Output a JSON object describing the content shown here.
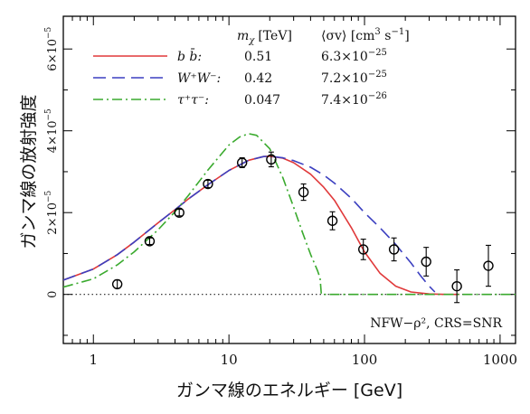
{
  "chart_data": {
    "type": "line",
    "xlabel": "ガンマ線のエネルギー [GeV]",
    "ylabel": "ガンマ線の放射強度",
    "xscale": "log",
    "xlim": [
      0.6,
      1300
    ],
    "ylim": [
      -1.2e-05,
      6.8e-05
    ],
    "x_ticks": [
      {
        "value": 1,
        "label": "1"
      },
      {
        "value": 10,
        "label": "10"
      },
      {
        "value": 100,
        "label": "100"
      },
      {
        "value": 1000,
        "label": "1000"
      }
    ],
    "y_ticks": [
      {
        "value": 0,
        "mant": "0",
        "exp": ""
      },
      {
        "value": 2e-05,
        "mant": "2×10",
        "exp": "−5"
      },
      {
        "value": 4e-05,
        "mant": "4×10",
        "exp": "−5"
      },
      {
        "value": 6e-05,
        "mant": "6×10",
        "exp": "−5"
      }
    ],
    "grid": false,
    "zero_line": "dotted",
    "legend": {
      "placement": "top",
      "header_mass": "m",
      "header_mass_sub": "χ",
      "header_mass_unit": "[TeV]",
      "header_xs": "⟨σv⟩ [cm",
      "header_xs_sup1": "3",
      "header_xs_mid": " s",
      "header_xs_sup2": "−1",
      "header_xs_end": "]"
    },
    "series": [
      {
        "name": "b b̄:",
        "mass": "0.51",
        "xs_mant": "6.3×10",
        "xs_exp": "−25",
        "color": "#e0393a",
        "style": "solid",
        "x": [
          0.6,
          1,
          1.5,
          2,
          3,
          4,
          5,
          7,
          10,
          14,
          18,
          20,
          25,
          30,
          40,
          50,
          60,
          80,
          100,
          130,
          170,
          220,
          300,
          400,
          500
        ],
        "y": [
          3.5e-06,
          6.2e-06,
          9.7e-06,
          1.28e-05,
          1.75e-05,
          2.07e-05,
          2.33e-05,
          2.68e-05,
          3.03e-05,
          3.28e-05,
          3.37e-05,
          3.38e-05,
          3.33e-05,
          3.22e-05,
          2.94e-05,
          2.62e-05,
          2.3e-05,
          1.63e-05,
          1.04e-05,
          5.2e-06,
          2e-06,
          6e-07,
          1e-07,
          0,
          0
        ]
      },
      {
        "name": "W⁺W⁻:",
        "mass": "0.42",
        "xs_mant": "7.2×10",
        "xs_exp": "−25",
        "color": "#3b3fc0",
        "style": "dashed",
        "x": [
          0.6,
          1,
          1.5,
          2,
          3,
          4,
          5,
          7,
          10,
          14,
          18,
          20,
          25,
          30,
          40,
          50,
          60,
          80,
          100,
          130,
          170,
          220,
          260,
          300,
          330
        ],
        "y": [
          3.5e-06,
          6.2e-06,
          9.7e-06,
          1.28e-05,
          1.75e-05,
          2.07e-05,
          2.33e-05,
          2.68e-05,
          3.03e-05,
          3.28e-05,
          3.37e-05,
          3.38e-05,
          3.34e-05,
          3.27e-05,
          3.11e-05,
          2.92e-05,
          2.72e-05,
          2.35e-05,
          2e-05,
          1.63e-05,
          1.22e-05,
          7.7e-06,
          4.5e-06,
          2e-06,
          6e-07
        ]
      },
      {
        "name": "τ⁺τ⁻:",
        "mass": "0.047",
        "xs_mant": "7.4×10",
        "xs_exp": "−26",
        "color": "#3aaa2e",
        "style": "dashdot",
        "x": [
          0.6,
          1,
          1.5,
          2,
          3,
          4,
          5,
          7,
          10,
          12,
          14,
          16,
          20,
          25,
          30,
          35,
          40,
          45,
          47,
          48,
          1300
        ],
        "y": [
          1.8e-06,
          3.8e-06,
          7.2e-06,
          1.04e-05,
          1.58e-05,
          2.02e-05,
          2.41e-05,
          3.04e-05,
          3.65e-05,
          3.85e-05,
          3.93e-05,
          3.89e-05,
          3.56e-05,
          2.85e-05,
          2.13e-05,
          1.5e-05,
          9.8e-06,
          5.8e-06,
          4e-06,
          0,
          0
        ]
      },
      {
        "name": "data",
        "style": "errorbar",
        "color": "#000000",
        "points": [
          {
            "x": 1.5,
            "y": 2.5e-06,
            "err": 1e-06
          },
          {
            "x": 2.6,
            "y": 1.3e-05,
            "err": 8e-07
          },
          {
            "x": 4.3,
            "y": 2e-05,
            "err": 8e-07
          },
          {
            "x": 7.0,
            "y": 2.7e-05,
            "err": 9e-07
          },
          {
            "x": 12.5,
            "y": 3.22e-05,
            "err": 1.2e-06
          },
          {
            "x": 20.5,
            "y": 3.3e-05,
            "err": 1.8e-06
          },
          {
            "x": 35.5,
            "y": 2.5e-05,
            "err": 2e-06
          },
          {
            "x": 58,
            "y": 1.8e-05,
            "err": 2.2e-06
          },
          {
            "x": 98,
            "y": 1.1e-05,
            "err": 2.5e-06
          },
          {
            "x": 165,
            "y": 1.1e-05,
            "err": 2.8e-06
          },
          {
            "x": 285,
            "y": 8e-06,
            "err": 3.5e-06
          },
          {
            "x": 480,
            "y": 2e-06,
            "err": 4e-06
          },
          {
            "x": 820,
            "y": 7e-06,
            "err": 5e-06
          }
        ]
      }
    ],
    "annotation": "NFW−ρ², CRS=SNR"
  }
}
